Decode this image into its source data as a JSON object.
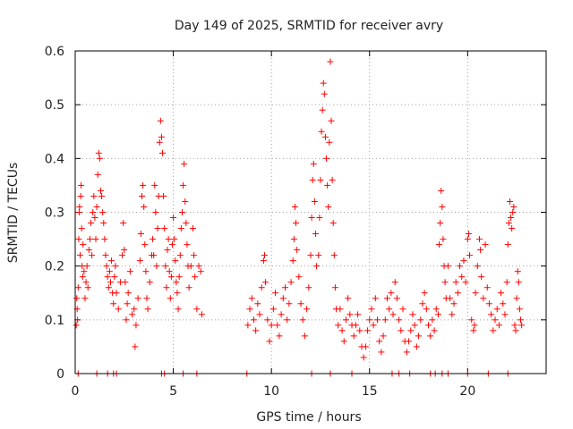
{
  "chart_data": {
    "type": "scatter",
    "title": "Day 149 of 2025, SRMTID for receiver avry",
    "xlabel": "GPS time / hours",
    "ylabel": "SRMTID / TECUs",
    "xlim": [
      0,
      24
    ],
    "ylim": [
      0,
      0.6
    ],
    "xticks": [
      0,
      5,
      10,
      15,
      20
    ],
    "xtick_labels": [
      "0",
      "5",
      "10",
      "15",
      "20"
    ],
    "yticks": [
      0,
      0.1,
      0.2,
      0.3,
      0.4,
      0.5,
      0.6
    ],
    "ytick_labels": [
      "0",
      "0.1",
      "0.2",
      "0.3",
      "0.4",
      "0.5",
      "0.6"
    ],
    "grid": true,
    "marker": "+",
    "color": "#ff0000",
    "series": [
      {
        "name": "SRMTID",
        "points": [
          [
            0.05,
            0.09
          ],
          [
            0.08,
            0.14
          ],
          [
            0.1,
            0.12
          ],
          [
            0.12,
            0.1
          ],
          [
            0.15,
            0.16
          ],
          [
            0.18,
            0.25
          ],
          [
            0.2,
            0.3
          ],
          [
            0.22,
            0.31
          ],
          [
            0.25,
            0.22
          ],
          [
            0.28,
            0.33
          ],
          [
            0.3,
            0.35
          ],
          [
            0.33,
            0.27
          ],
          [
            0.35,
            0.2
          ],
          [
            0.38,
            0.18
          ],
          [
            0.4,
            0.24
          ],
          [
            0.45,
            0.19
          ],
          [
            0.5,
            0.14
          ],
          [
            0.55,
            0.17
          ],
          [
            0.6,
            0.2
          ],
          [
            0.65,
            0.16
          ],
          [
            0.7,
            0.23
          ],
          [
            0.75,
            0.25
          ],
          [
            0.8,
            0.28
          ],
          [
            0.85,
            0.22
          ],
          [
            0.9,
            0.3
          ],
          [
            0.95,
            0.33
          ],
          [
            1.0,
            0.29
          ],
          [
            1.05,
            0.25
          ],
          [
            1.1,
            0.31
          ],
          [
            1.15,
            0.37
          ],
          [
            1.2,
            0.41
          ],
          [
            1.25,
            0.4
          ],
          [
            1.3,
            0.34
          ],
          [
            1.35,
            0.33
          ],
          [
            1.4,
            0.3
          ],
          [
            1.45,
            0.28
          ],
          [
            1.5,
            0.25
          ],
          [
            1.55,
            0.22
          ],
          [
            1.6,
            0.2
          ],
          [
            1.65,
            0.18
          ],
          [
            1.7,
            0.16
          ],
          [
            1.75,
            0.19
          ],
          [
            1.8,
            0.17
          ],
          [
            1.85,
            0.21
          ],
          [
            1.9,
            0.15
          ],
          [
            1.95,
            0.13
          ],
          [
            2.0,
            0.18
          ],
          [
            2.05,
            0.2
          ],
          [
            2.1,
            0.15
          ],
          [
            2.2,
            0.12
          ],
          [
            2.3,
            0.17
          ],
          [
            2.4,
            0.22
          ],
          [
            2.45,
            0.28
          ],
          [
            2.5,
            0.23
          ],
          [
            2.55,
            0.17
          ],
          [
            2.6,
            0.1
          ],
          [
            2.65,
            0.13
          ],
          [
            2.7,
            0.15
          ],
          [
            2.8,
            0.19
          ],
          [
            2.9,
            0.11
          ],
          [
            3.0,
            0.12
          ],
          [
            3.05,
            0.05
          ],
          [
            3.1,
            0.09
          ],
          [
            3.2,
            0.14
          ],
          [
            3.3,
            0.21
          ],
          [
            3.35,
            0.26
          ],
          [
            3.4,
            0.33
          ],
          [
            3.45,
            0.35
          ],
          [
            3.5,
            0.31
          ],
          [
            3.55,
            0.24
          ],
          [
            3.6,
            0.19
          ],
          [
            3.65,
            0.14
          ],
          [
            3.7,
            0.12
          ],
          [
            3.8,
            0.17
          ],
          [
            3.9,
            0.22
          ],
          [
            3.95,
            0.25
          ],
          [
            4.0,
            0.22
          ],
          [
            4.05,
            0.35
          ],
          [
            4.1,
            0.3
          ],
          [
            4.15,
            0.2
          ],
          [
            4.2,
            0.27
          ],
          [
            4.25,
            0.33
          ],
          [
            4.3,
            0.43
          ],
          [
            4.35,
            0.47
          ],
          [
            4.4,
            0.44
          ],
          [
            4.45,
            0.41
          ],
          [
            4.5,
            0.33
          ],
          [
            4.55,
            0.27
          ],
          [
            4.6,
            0.2
          ],
          [
            4.65,
            0.16
          ],
          [
            4.7,
            0.23
          ],
          [
            4.75,
            0.25
          ],
          [
            4.8,
            0.19
          ],
          [
            4.85,
            0.14
          ],
          [
            4.9,
            0.18
          ],
          [
            4.95,
            0.24
          ],
          [
            5.0,
            0.29
          ],
          [
            5.05,
            0.25
          ],
          [
            5.1,
            0.21
          ],
          [
            5.15,
            0.17
          ],
          [
            5.2,
            0.15
          ],
          [
            5.25,
            0.12
          ],
          [
            5.3,
            0.18
          ],
          [
            5.35,
            0.22
          ],
          [
            5.4,
            0.27
          ],
          [
            5.45,
            0.3
          ],
          [
            5.5,
            0.35
          ],
          [
            5.55,
            0.39
          ],
          [
            5.6,
            0.32
          ],
          [
            5.65,
            0.28
          ],
          [
            5.7,
            0.24
          ],
          [
            5.75,
            0.2
          ],
          [
            5.8,
            0.16
          ],
          [
            5.9,
            0.2
          ],
          [
            6.0,
            0.27
          ],
          [
            6.05,
            0.22
          ],
          [
            6.1,
            0.18
          ],
          [
            6.2,
            0.12
          ],
          [
            6.3,
            0.2
          ],
          [
            6.4,
            0.19
          ],
          [
            6.45,
            0.11
          ],
          [
            8.8,
            0.09
          ],
          [
            8.9,
            0.12
          ],
          [
            9.0,
            0.14
          ],
          [
            9.1,
            0.1
          ],
          [
            9.2,
            0.08
          ],
          [
            9.3,
            0.13
          ],
          [
            9.4,
            0.11
          ],
          [
            9.5,
            0.16
          ],
          [
            9.6,
            0.21
          ],
          [
            9.65,
            0.22
          ],
          [
            9.7,
            0.17
          ],
          [
            9.8,
            0.1
          ],
          [
            9.9,
            0.06
          ],
          [
            10.0,
            0.09
          ],
          [
            10.1,
            0.12
          ],
          [
            10.2,
            0.15
          ],
          [
            10.3,
            0.09
          ],
          [
            10.4,
            0.07
          ],
          [
            10.5,
            0.11
          ],
          [
            10.6,
            0.14
          ],
          [
            10.7,
            0.16
          ],
          [
            10.8,
            0.1
          ],
          [
            10.9,
            0.13
          ],
          [
            11.0,
            0.17
          ],
          [
            11.1,
            0.21
          ],
          [
            11.15,
            0.25
          ],
          [
            11.2,
            0.31
          ],
          [
            11.25,
            0.28
          ],
          [
            11.3,
            0.23
          ],
          [
            11.4,
            0.18
          ],
          [
            11.5,
            0.13
          ],
          [
            11.6,
            0.1
          ],
          [
            11.7,
            0.07
          ],
          [
            11.8,
            0.12
          ],
          [
            11.9,
            0.16
          ],
          [
            12.0,
            0.22
          ],
          [
            12.05,
            0.29
          ],
          [
            12.1,
            0.36
          ],
          [
            12.15,
            0.39
          ],
          [
            12.2,
            0.32
          ],
          [
            12.25,
            0.26
          ],
          [
            12.3,
            0.2
          ],
          [
            12.4,
            0.22
          ],
          [
            12.45,
            0.29
          ],
          [
            12.5,
            0.36
          ],
          [
            12.55,
            0.45
          ],
          [
            12.6,
            0.49
          ],
          [
            12.65,
            0.54
          ],
          [
            12.7,
            0.52
          ],
          [
            12.75,
            0.44
          ],
          [
            12.8,
            0.4
          ],
          [
            12.85,
            0.35
          ],
          [
            12.9,
            0.31
          ],
          [
            12.95,
            0.43
          ],
          [
            13.0,
            0.58
          ],
          [
            13.05,
            0.47
          ],
          [
            13.1,
            0.36
          ],
          [
            13.15,
            0.28
          ],
          [
            13.2,
            0.22
          ],
          [
            13.25,
            0.16
          ],
          [
            13.3,
            0.12
          ],
          [
            13.4,
            0.09
          ],
          [
            13.5,
            0.12
          ],
          [
            13.6,
            0.08
          ],
          [
            13.7,
            0.06
          ],
          [
            13.8,
            0.1
          ],
          [
            13.9,
            0.14
          ],
          [
            14.0,
            0.11
          ],
          [
            14.1,
            0.09
          ],
          [
            14.2,
            0.07
          ],
          [
            14.3,
            0.09
          ],
          [
            14.4,
            0.11
          ],
          [
            14.5,
            0.08
          ],
          [
            14.6,
            0.05
          ],
          [
            14.7,
            0.03
          ],
          [
            14.8,
            0.05
          ],
          [
            14.9,
            0.08
          ],
          [
            15.0,
            0.1
          ],
          [
            15.1,
            0.12
          ],
          [
            15.2,
            0.09
          ],
          [
            15.3,
            0.14
          ],
          [
            15.4,
            0.1
          ],
          [
            15.5,
            0.06
          ],
          [
            15.6,
            0.04
          ],
          [
            15.7,
            0.07
          ],
          [
            15.8,
            0.1
          ],
          [
            15.9,
            0.14
          ],
          [
            16.0,
            0.12
          ],
          [
            16.1,
            0.15
          ],
          [
            16.2,
            0.11
          ],
          [
            16.3,
            0.17
          ],
          [
            16.4,
            0.14
          ],
          [
            16.5,
            0.1
          ],
          [
            16.6,
            0.08
          ],
          [
            16.7,
            0.12
          ],
          [
            16.8,
            0.06
          ],
          [
            16.9,
            0.04
          ],
          [
            17.0,
            0.06
          ],
          [
            17.1,
            0.08
          ],
          [
            17.2,
            0.11
          ],
          [
            17.3,
            0.09
          ],
          [
            17.4,
            0.05
          ],
          [
            17.5,
            0.07
          ],
          [
            17.6,
            0.1
          ],
          [
            17.7,
            0.13
          ],
          [
            17.8,
            0.15
          ],
          [
            17.9,
            0.12
          ],
          [
            18.0,
            0.09
          ],
          [
            18.1,
            0.07
          ],
          [
            18.2,
            0.1
          ],
          [
            18.3,
            0.08
          ],
          [
            18.4,
            0.12
          ],
          [
            18.5,
            0.11
          ],
          [
            18.55,
            0.24
          ],
          [
            18.6,
            0.28
          ],
          [
            18.65,
            0.34
          ],
          [
            18.7,
            0.31
          ],
          [
            18.75,
            0.25
          ],
          [
            18.8,
            0.2
          ],
          [
            18.85,
            0.17
          ],
          [
            18.9,
            0.14
          ],
          [
            19.0,
            0.2
          ],
          [
            19.1,
            0.14
          ],
          [
            19.2,
            0.11
          ],
          [
            19.3,
            0.13
          ],
          [
            19.4,
            0.17
          ],
          [
            19.5,
            0.15
          ],
          [
            19.6,
            0.2
          ],
          [
            19.7,
            0.18
          ],
          [
            19.8,
            0.21
          ],
          [
            19.9,
            0.17
          ],
          [
            20.0,
            0.25
          ],
          [
            20.05,
            0.26
          ],
          [
            20.1,
            0.22
          ],
          [
            20.2,
            0.1
          ],
          [
            20.3,
            0.08
          ],
          [
            20.35,
            0.09
          ],
          [
            20.4,
            0.15
          ],
          [
            20.5,
            0.2
          ],
          [
            20.6,
            0.25
          ],
          [
            20.65,
            0.23
          ],
          [
            20.7,
            0.18
          ],
          [
            20.8,
            0.14
          ],
          [
            20.9,
            0.24
          ],
          [
            21.0,
            0.16
          ],
          [
            21.1,
            0.13
          ],
          [
            21.2,
            0.11
          ],
          [
            21.3,
            0.08
          ],
          [
            21.4,
            0.1
          ],
          [
            21.5,
            0.12
          ],
          [
            21.6,
            0.09
          ],
          [
            21.7,
            0.15
          ],
          [
            21.8,
            0.13
          ],
          [
            21.9,
            0.11
          ],
          [
            22.0,
            0.17
          ],
          [
            22.05,
            0.24
          ],
          [
            22.1,
            0.28
          ],
          [
            22.15,
            0.32
          ],
          [
            22.2,
            0.29
          ],
          [
            22.25,
            0.27
          ],
          [
            22.3,
            0.3
          ],
          [
            22.35,
            0.31
          ],
          [
            22.4,
            0.09
          ],
          [
            22.45,
            0.08
          ],
          [
            22.5,
            0.14
          ],
          [
            22.55,
            0.19
          ],
          [
            22.6,
            0.17
          ],
          [
            22.65,
            0.12
          ],
          [
            22.7,
            0.1
          ],
          [
            22.75,
            0.09
          ]
        ]
      }
    ],
    "baseline_markers": [
      0.15,
      1.1,
      1.65,
      1.95,
      2.1,
      4.4,
      4.55,
      5.5,
      6.2,
      8.75,
      12.05,
      13.0,
      14.1,
      16.15,
      16.5,
      17.05,
      18.1,
      18.35,
      18.7,
      19.0,
      20.0,
      21.05,
      22.05
    ]
  }
}
